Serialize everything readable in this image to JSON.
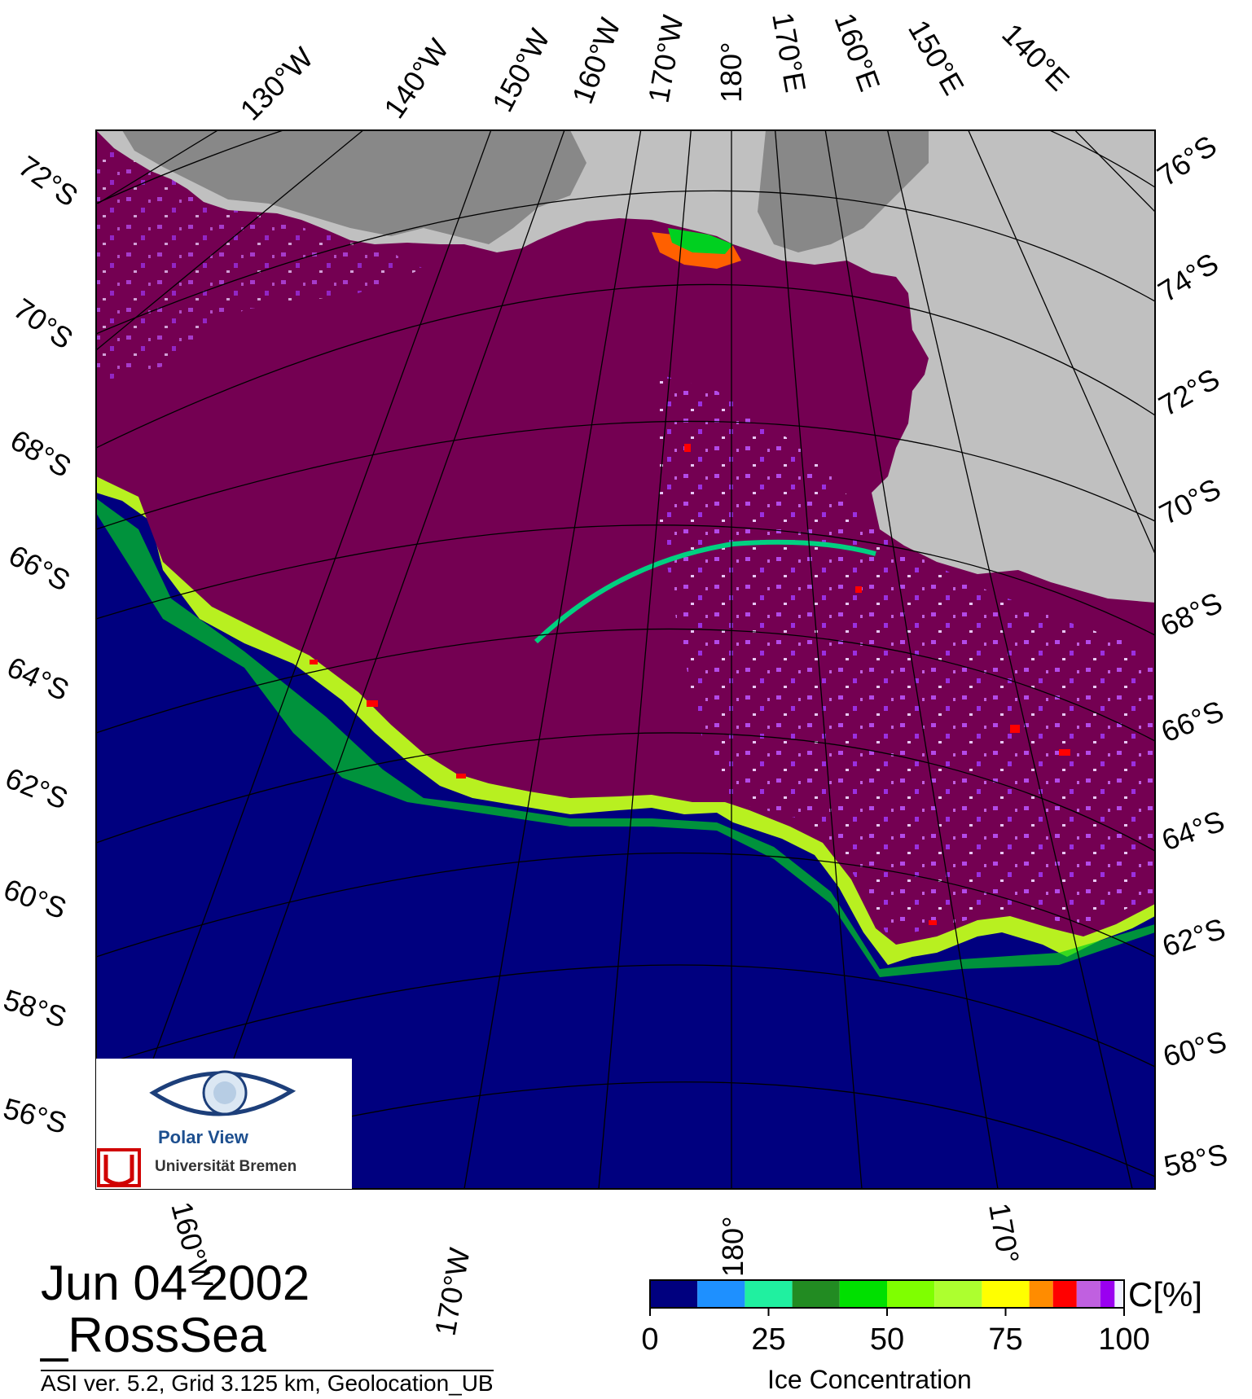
{
  "header": {
    "date": "Jun 04 2002",
    "region": "_RossSea",
    "credit": "ASI ver. 5.2,  Grid 3.125 km, Geolocation_UB"
  },
  "logo": {
    "line1": "Polar View",
    "line2": "Universität Bremen"
  },
  "map_labels": {
    "top_lon": [
      "130°W",
      "140°W",
      "150°W",
      "160°W",
      "170°W",
      "180°",
      "170°E",
      "160°E",
      "150°E",
      "140°E"
    ],
    "left_lat": [
      "72°S",
      "70°S",
      "68°S",
      "66°S",
      "64°S",
      "62°S",
      "60°S",
      "58°S",
      "56°S"
    ],
    "right_lat": [
      "76°S",
      "74°S",
      "72°S",
      "70°S",
      "68°S",
      "66°S",
      "64°S",
      "62°S",
      "60°S",
      "58°S"
    ],
    "bottom_lon": [
      "160°W",
      "170°W",
      "180°",
      "170°"
    ]
  },
  "colorbar": {
    "title": "Ice Concentration",
    "units": "C[%]",
    "ticks": [
      "0",
      "25",
      "50",
      "75",
      "100"
    ],
    "bins": [
      {
        "from": 0,
        "to": 10,
        "color": "#00007f"
      },
      {
        "from": 10,
        "to": 20,
        "color": "#1e90ff"
      },
      {
        "from": 20,
        "to": 30,
        "color": "#20f0a0"
      },
      {
        "from": 30,
        "to": 40,
        "color": "#228b22"
      },
      {
        "from": 40,
        "to": 50,
        "color": "#00e000"
      },
      {
        "from": 50,
        "to": 60,
        "color": "#7fff00"
      },
      {
        "from": 60,
        "to": 70,
        "color": "#adff2f"
      },
      {
        "from": 70,
        "to": 80,
        "color": "#ffff00"
      },
      {
        "from": 80,
        "to": 85,
        "color": "#ff8c00"
      },
      {
        "from": 85,
        "to": 90,
        "color": "#ff0000"
      },
      {
        "from": 90,
        "to": 95,
        "color": "#c060e0"
      },
      {
        "from": 95,
        "to": 98,
        "color": "#9a00f0"
      },
      {
        "from": 98,
        "to": 100,
        "color": "#f0f0ff"
      }
    ]
  },
  "colors": {
    "ocean": "#00007f",
    "pack_ice": "#740052",
    "land": "#c0c0c0",
    "ice_shelf_dark": "#888888",
    "marginal_ice": "#9a30e0"
  }
}
